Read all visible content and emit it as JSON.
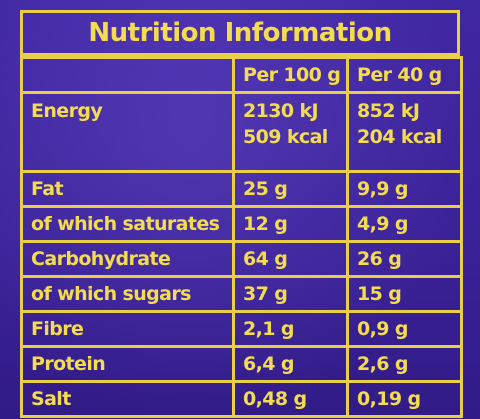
{
  "title": "Nutrition Information",
  "columns": {
    "per100": "Per 100 g",
    "per40": "Per 40 g"
  },
  "energy": {
    "label": "Energy",
    "per100_kj": "2130 kJ",
    "per100_kcal": "509 kcal",
    "per40_kj": "852 kJ",
    "per40_kcal": "204 kcal"
  },
  "rows": [
    {
      "label": "Fat",
      "per100": "25 g",
      "per40": "9,9 g"
    },
    {
      "label": "of which saturates",
      "per100": "12 g",
      "per40": "4,9 g"
    },
    {
      "label": "Carbohydrate",
      "per100": "64 g",
      "per40": "26 g"
    },
    {
      "label": "of which sugars",
      "per100": "37 g",
      "per40": "15 g"
    },
    {
      "label": "Fibre",
      "per100": "2,1 g",
      "per40": "0,9 g"
    },
    {
      "label": "Protein",
      "per100": "6,4 g",
      "per40": "2,6 g"
    },
    {
      "label": "Salt",
      "per100": "0,48 g",
      "per40": "0,19 g"
    }
  ],
  "colors": {
    "background": "#3a2398",
    "text_and_border": "#f4dc4f"
  }
}
